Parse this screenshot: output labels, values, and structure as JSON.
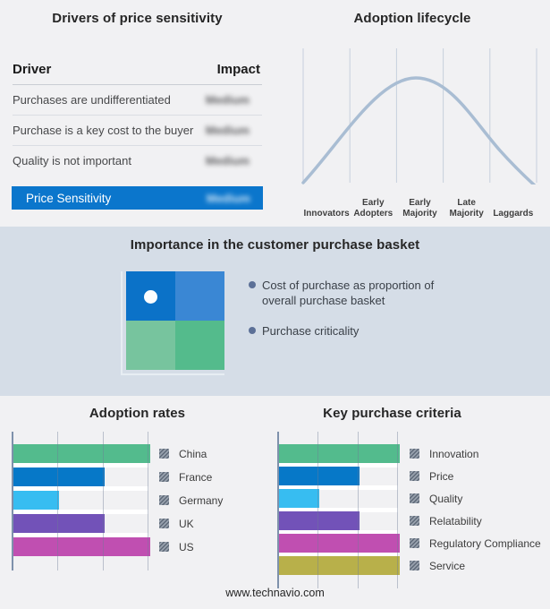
{
  "colors": {
    "page_bg": "#f1f1f3",
    "band_bg": "#d5dde7",
    "highlight_blue": "#0b76cc",
    "curve": "#a9bdd3",
    "lifecycle_gridline": "#c7d0dd",
    "quadrant_tl": "#0b72c8",
    "quadrant_tr": "#3a87d4",
    "quadrant_bl": "#77c49e",
    "quadrant_br": "#54bb8c"
  },
  "drivers_panel": {
    "title": "Drivers of price sensitivity",
    "columns": {
      "driver": "Driver",
      "impact": "Impact"
    },
    "rows": [
      {
        "driver": "Purchases are undifferentiated",
        "impact": "Medium",
        "impact_blurred": true
      },
      {
        "driver": "Purchase is a key cost to the buyer",
        "impact": "Medium",
        "impact_blurred": true
      },
      {
        "driver": "Quality is not important",
        "impact": "Medium",
        "impact_blurred": true
      }
    ],
    "highlight_row": {
      "driver": "Price Sensitivity",
      "impact": "Medium",
      "impact_blurred": true
    }
  },
  "lifecycle_panel": {
    "title": "Adoption lifecycle",
    "stages": [
      "Innovators",
      "Early Adopters",
      "Early Majority",
      "Late Majority",
      "Laggards"
    ]
  },
  "basket_band": {
    "title": "Importance in the customer purchase basket",
    "bullets": [
      "Cost of purchase as proportion of overall purchase basket",
      "Purchase criticality"
    ],
    "quadrant_marker": "white dot in top-left (high cost, low criticality) quadrant"
  },
  "footer": {
    "url": "www.technavio.com"
  },
  "chart_data": [
    {
      "type": "line",
      "title": "Adoption lifecycle",
      "categories": [
        "Innovators",
        "Early Adopters",
        "Early Majority",
        "Late Majority",
        "Laggards"
      ],
      "description": "Bell-shaped adoption curve rising from Innovators, peaking over Early Majority, falling to Laggards",
      "curve_color": "#a9bdd3",
      "grid": true,
      "legend_position": "none"
    },
    {
      "type": "bar",
      "orientation": "horizontal",
      "title": "Adoption rates",
      "categories": [
        "China",
        "France",
        "Germany",
        "UK",
        "US"
      ],
      "values": [
        3,
        2,
        1,
        2,
        3
      ],
      "xmax": 3,
      "xlim": [
        0,
        3
      ],
      "colors": [
        "#53bb8d",
        "#0678c8",
        "#37bdf1",
        "#7252b8",
        "#c04fb1"
      ],
      "grid": true,
      "legend_position": "right"
    },
    {
      "type": "bar",
      "orientation": "horizontal",
      "title": "Key purchase criteria",
      "categories": [
        "Innovation",
        "Price",
        "Quality",
        "Relatability",
        "Regulatory Compliance",
        "Service"
      ],
      "values": [
        3,
        2,
        1,
        2,
        3,
        3
      ],
      "xmax": 3,
      "xlim": [
        0,
        3
      ],
      "colors": [
        "#53bb8d",
        "#0678c8",
        "#37bdf1",
        "#7252b8",
        "#c04fb1",
        "#b8b04a"
      ],
      "grid": true,
      "legend_position": "right"
    }
  ]
}
